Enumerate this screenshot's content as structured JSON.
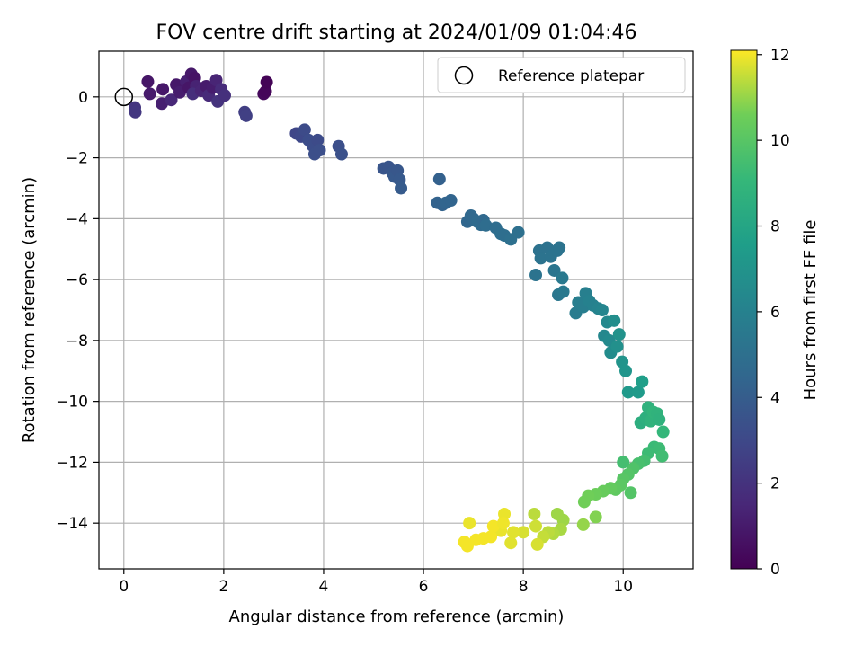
{
  "chart_data": {
    "type": "scatter",
    "title": "FOV centre drift starting at 2024/01/09 01:04:46",
    "xlabel": "Angular distance from reference (arcmin)",
    "ylabel": "Rotation from reference (arcmin)",
    "xlim": [
      -0.5,
      11.4
    ],
    "ylim": [
      -15.5,
      1.5
    ],
    "xticks": [
      0,
      2,
      4,
      6,
      8,
      10
    ],
    "yticks": [
      0,
      -2,
      -4,
      -6,
      -8,
      -10,
      -12,
      -14
    ],
    "grid": true,
    "legend": {
      "placement": "top-right",
      "entries": [
        "Reference platepar"
      ]
    },
    "reference_point": {
      "x": 0,
      "y": 0
    },
    "colorbar": {
      "label": "Hours from first FF file",
      "range": [
        0,
        12.1
      ],
      "ticks": [
        0,
        2,
        4,
        6,
        8,
        10,
        12
      ],
      "colormap": "viridis"
    },
    "points": [
      {
        "x": 0.22,
        "y": -0.35,
        "t": 2.1
      },
      {
        "x": 0.23,
        "y": -0.5,
        "t": 2.2
      },
      {
        "x": 0.48,
        "y": 0.5,
        "t": 0.8
      },
      {
        "x": 0.52,
        "y": 0.1,
        "t": 1.0
      },
      {
        "x": 0.78,
        "y": 0.25,
        "t": 0.9
      },
      {
        "x": 0.76,
        "y": -0.22,
        "t": 1.2
      },
      {
        "x": 0.95,
        "y": -0.1,
        "t": 1.5
      },
      {
        "x": 1.05,
        "y": 0.4,
        "t": 0.9
      },
      {
        "x": 1.12,
        "y": 0.15,
        "t": 1.1
      },
      {
        "x": 1.25,
        "y": 0.5,
        "t": 1.2
      },
      {
        "x": 1.3,
        "y": 0.3,
        "t": 0.8
      },
      {
        "x": 1.35,
        "y": 0.75,
        "t": 0.9
      },
      {
        "x": 1.42,
        "y": 0.62,
        "t": 0.7
      },
      {
        "x": 1.45,
        "y": 0.35,
        "t": 1.3
      },
      {
        "x": 1.38,
        "y": 0.1,
        "t": 1.8
      },
      {
        "x": 1.55,
        "y": 0.2,
        "t": 1.4
      },
      {
        "x": 1.65,
        "y": 0.35,
        "t": 1.0
      },
      {
        "x": 1.7,
        "y": 0.05,
        "t": 1.6
      },
      {
        "x": 1.78,
        "y": 0.3,
        "t": 1.1
      },
      {
        "x": 1.85,
        "y": 0.55,
        "t": 1.4
      },
      {
        "x": 1.88,
        "y": -0.15,
        "t": 2.0
      },
      {
        "x": 1.95,
        "y": 0.25,
        "t": 1.7
      },
      {
        "x": 2.02,
        "y": 0.05,
        "t": 1.9
      },
      {
        "x": 2.42,
        "y": -0.5,
        "t": 2.5
      },
      {
        "x": 2.45,
        "y": -0.62,
        "t": 2.6
      },
      {
        "x": 2.8,
        "y": 0.1,
        "t": 0.3
      },
      {
        "x": 2.84,
        "y": 0.18,
        "t": 0.2
      },
      {
        "x": 2.86,
        "y": 0.48,
        "t": 0.1
      },
      {
        "x": 3.45,
        "y": -1.2,
        "t": 2.9
      },
      {
        "x": 3.55,
        "y": -1.3,
        "t": 3.0
      },
      {
        "x": 3.62,
        "y": -1.08,
        "t": 3.1
      },
      {
        "x": 3.7,
        "y": -1.42,
        "t": 3.2
      },
      {
        "x": 3.78,
        "y": -1.6,
        "t": 3.2
      },
      {
        "x": 3.82,
        "y": -1.88,
        "t": 3.3
      },
      {
        "x": 3.88,
        "y": -1.42,
        "t": 3.1
      },
      {
        "x": 3.92,
        "y": -1.75,
        "t": 3.3
      },
      {
        "x": 4.3,
        "y": -1.62,
        "t": 3.3
      },
      {
        "x": 4.36,
        "y": -1.88,
        "t": 3.4
      },
      {
        "x": 5.2,
        "y": -2.35,
        "t": 3.6
      },
      {
        "x": 5.3,
        "y": -2.3,
        "t": 3.6
      },
      {
        "x": 5.38,
        "y": -2.5,
        "t": 3.7
      },
      {
        "x": 5.42,
        "y": -2.62,
        "t": 3.8
      },
      {
        "x": 5.48,
        "y": -2.42,
        "t": 3.7
      },
      {
        "x": 5.52,
        "y": -2.72,
        "t": 3.8
      },
      {
        "x": 5.55,
        "y": -3.0,
        "t": 3.9
      },
      {
        "x": 6.32,
        "y": -2.7,
        "t": 4.2
      },
      {
        "x": 6.28,
        "y": -3.48,
        "t": 4.3
      },
      {
        "x": 6.38,
        "y": -3.55,
        "t": 4.3
      },
      {
        "x": 6.45,
        "y": -3.48,
        "t": 4.4
      },
      {
        "x": 6.55,
        "y": -3.4,
        "t": 4.4
      },
      {
        "x": 6.88,
        "y": -4.1,
        "t": 4.5
      },
      {
        "x": 6.95,
        "y": -3.9,
        "t": 4.6
      },
      {
        "x": 7.0,
        "y": -4.0,
        "t": 4.6
      },
      {
        "x": 7.08,
        "y": -4.1,
        "t": 4.7
      },
      {
        "x": 7.15,
        "y": -4.2,
        "t": 4.7
      },
      {
        "x": 7.2,
        "y": -4.05,
        "t": 4.6
      },
      {
        "x": 7.25,
        "y": -4.22,
        "t": 4.8
      },
      {
        "x": 7.45,
        "y": -4.3,
        "t": 4.8
      },
      {
        "x": 7.55,
        "y": -4.5,
        "t": 4.9
      },
      {
        "x": 7.62,
        "y": -4.55,
        "t": 4.9
      },
      {
        "x": 7.75,
        "y": -4.68,
        "t": 5.0
      },
      {
        "x": 7.9,
        "y": -4.45,
        "t": 5.0
      },
      {
        "x": 8.25,
        "y": -5.85,
        "t": 5.2
      },
      {
        "x": 8.32,
        "y": -5.05,
        "t": 5.1
      },
      {
        "x": 8.35,
        "y": -5.3,
        "t": 5.2
      },
      {
        "x": 8.48,
        "y": -4.95,
        "t": 5.1
      },
      {
        "x": 8.55,
        "y": -5.25,
        "t": 5.2
      },
      {
        "x": 8.62,
        "y": -5.7,
        "t": 5.3
      },
      {
        "x": 8.68,
        "y": -5.05,
        "t": 5.2
      },
      {
        "x": 8.72,
        "y": -4.95,
        "t": 5.2
      },
      {
        "x": 8.7,
        "y": -6.5,
        "t": 5.4
      },
      {
        "x": 8.78,
        "y": -5.95,
        "t": 5.5
      },
      {
        "x": 8.8,
        "y": -6.4,
        "t": 5.5
      },
      {
        "x": 9.05,
        "y": -7.1,
        "t": 5.7
      },
      {
        "x": 9.1,
        "y": -6.75,
        "t": 5.8
      },
      {
        "x": 9.2,
        "y": -6.9,
        "t": 5.8
      },
      {
        "x": 9.25,
        "y": -6.45,
        "t": 5.9
      },
      {
        "x": 9.32,
        "y": -6.7,
        "t": 6.0
      },
      {
        "x": 9.4,
        "y": -6.85,
        "t": 6.0
      },
      {
        "x": 9.5,
        "y": -6.95,
        "t": 6.1
      },
      {
        "x": 9.58,
        "y": -7.0,
        "t": 6.2
      },
      {
        "x": 9.62,
        "y": -7.85,
        "t": 6.3
      },
      {
        "x": 9.68,
        "y": -7.4,
        "t": 6.4
      },
      {
        "x": 9.72,
        "y": -8.0,
        "t": 6.5
      },
      {
        "x": 9.75,
        "y": -8.4,
        "t": 6.6
      },
      {
        "x": 9.82,
        "y": -7.35,
        "t": 6.7
      },
      {
        "x": 9.88,
        "y": -8.2,
        "t": 6.8
      },
      {
        "x": 9.92,
        "y": -7.8,
        "t": 6.9
      },
      {
        "x": 9.98,
        "y": -8.7,
        "t": 7.0
      },
      {
        "x": 10.05,
        "y": -9.0,
        "t": 7.1
      },
      {
        "x": 10.1,
        "y": -9.7,
        "t": 7.3
      },
      {
        "x": 10.3,
        "y": -9.7,
        "t": 7.4
      },
      {
        "x": 10.38,
        "y": -9.35,
        "t": 7.6
      },
      {
        "x": 10.35,
        "y": -10.7,
        "t": 8.5
      },
      {
        "x": 10.45,
        "y": -10.55,
        "t": 8.6
      },
      {
        "x": 10.5,
        "y": -10.2,
        "t": 8.7
      },
      {
        "x": 10.55,
        "y": -10.65,
        "t": 8.8
      },
      {
        "x": 10.6,
        "y": -10.35,
        "t": 8.9
      },
      {
        "x": 10.68,
        "y": -10.4,
        "t": 8.8
      },
      {
        "x": 10.72,
        "y": -10.6,
        "t": 8.7
      },
      {
        "x": 10.8,
        "y": -11.0,
        "t": 9.0
      },
      {
        "x": 10.62,
        "y": -11.5,
        "t": 9.2
      },
      {
        "x": 10.72,
        "y": -11.55,
        "t": 9.3
      },
      {
        "x": 10.78,
        "y": -11.8,
        "t": 9.4
      },
      {
        "x": 10.5,
        "y": -11.7,
        "t": 9.3
      },
      {
        "x": 10.42,
        "y": -11.95,
        "t": 9.5
      },
      {
        "x": 10.3,
        "y": -12.05,
        "t": 9.6
      },
      {
        "x": 10.2,
        "y": -12.2,
        "t": 9.8
      },
      {
        "x": 10.1,
        "y": -12.4,
        "t": 9.9
      },
      {
        "x": 10.0,
        "y": -12.55,
        "t": 10.0
      },
      {
        "x": 9.95,
        "y": -12.75,
        "t": 10.1
      },
      {
        "x": 9.85,
        "y": -12.9,
        "t": 10.2
      },
      {
        "x": 9.75,
        "y": -12.85,
        "t": 10.3
      },
      {
        "x": 9.6,
        "y": -12.95,
        "t": 10.4
      },
      {
        "x": 9.45,
        "y": -13.05,
        "t": 10.5
      },
      {
        "x": 9.3,
        "y": -13.1,
        "t": 10.6
      },
      {
        "x": 10.15,
        "y": -13.0,
        "t": 9.9
      },
      {
        "x": 10.0,
        "y": -12.0,
        "t": 9.5
      },
      {
        "x": 9.22,
        "y": -13.3,
        "t": 10.6
      },
      {
        "x": 9.45,
        "y": -13.8,
        "t": 10.8
      },
      {
        "x": 9.2,
        "y": -14.05,
        "t": 11.0
      },
      {
        "x": 8.8,
        "y": -13.9,
        "t": 11.1
      },
      {
        "x": 8.75,
        "y": -14.2,
        "t": 11.2
      },
      {
        "x": 8.68,
        "y": -13.7,
        "t": 11.1
      },
      {
        "x": 8.6,
        "y": -14.35,
        "t": 11.3
      },
      {
        "x": 8.5,
        "y": -14.3,
        "t": 11.4
      },
      {
        "x": 8.4,
        "y": -14.45,
        "t": 11.5
      },
      {
        "x": 8.22,
        "y": -13.7,
        "t": 11.4
      },
      {
        "x": 8.25,
        "y": -14.1,
        "t": 11.6
      },
      {
        "x": 8.28,
        "y": -14.7,
        "t": 11.7
      },
      {
        "x": 8.0,
        "y": -14.3,
        "t": 11.7
      },
      {
        "x": 7.8,
        "y": -14.3,
        "t": 11.8
      },
      {
        "x": 7.75,
        "y": -14.65,
        "t": 11.8
      },
      {
        "x": 7.62,
        "y": -13.7,
        "t": 11.9
      },
      {
        "x": 7.55,
        "y": -14.25,
        "t": 11.9
      },
      {
        "x": 7.4,
        "y": -14.1,
        "t": 12.0
      },
      {
        "x": 7.35,
        "y": -14.45,
        "t": 12.0
      },
      {
        "x": 7.2,
        "y": -14.5,
        "t": 12.0
      },
      {
        "x": 7.05,
        "y": -14.55,
        "t": 12.0
      },
      {
        "x": 6.92,
        "y": -14.0,
        "t": 11.9
      },
      {
        "x": 6.88,
        "y": -14.75,
        "t": 12.0
      },
      {
        "x": 6.82,
        "y": -14.62,
        "t": 12.0
      },
      {
        "x": 7.6,
        "y": -14.0,
        "t": 11.95
      }
    ]
  }
}
